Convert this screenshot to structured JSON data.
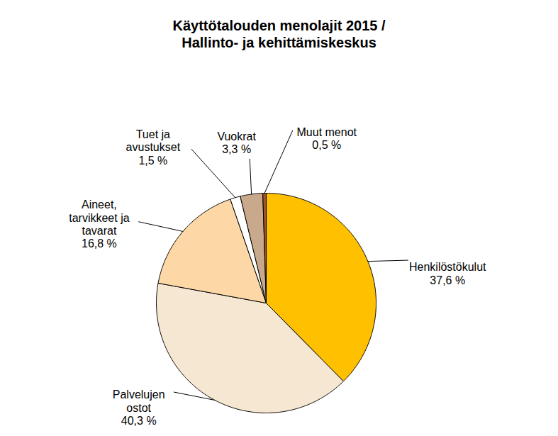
{
  "chart_data": {
    "type": "pie",
    "title": "Käyttötalouden menolajit 2015 / Hallinto- ja kehittämiskeskus",
    "categories": [
      "Henkilöstökulut",
      "Palvelujen ostot",
      "Aineet, tarvikkeet ja tavarat",
      "Tuet ja avustukset",
      "Vuokrat",
      "Muut menot"
    ],
    "values": [
      37.6,
      40.3,
      16.8,
      1.5,
      3.3,
      0.5
    ],
    "value_labels": [
      "37,6 %",
      "40,3 %",
      "16,8 %",
      "1,5 %",
      "3,3 %",
      "0,5 %"
    ],
    "colors": [
      "#FFC000",
      "#F6E7D2",
      "#FDD8A6",
      "#FFFFFF",
      "#C9A98B",
      "#A0522D"
    ],
    "data_labels": true
  }
}
